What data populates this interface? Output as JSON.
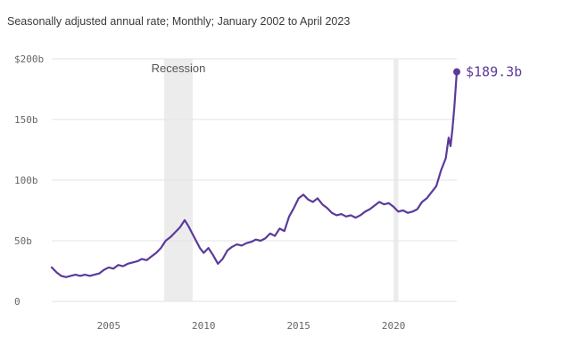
{
  "subtitle": "Seasonally adjusted annual rate; Monthly; January 2002 to April 2023",
  "chart_data": {
    "type": "line",
    "title": "",
    "xlabel": "",
    "ylabel": "",
    "xlim": [
      2002.0,
      2023.33
    ],
    "ylim": [
      0,
      200
    ],
    "grid": true,
    "y_ticks": [
      {
        "value": 0,
        "label": "0"
      },
      {
        "value": 50,
        "label": "50b"
      },
      {
        "value": 100,
        "label": "100b"
      },
      {
        "value": 150,
        "label": "150b"
      },
      {
        "value": 200,
        "label": "$200b"
      }
    ],
    "x_ticks": [
      {
        "value": 2005,
        "label": "2005"
      },
      {
        "value": 2010,
        "label": "2010"
      },
      {
        "value": 2015,
        "label": "2015"
      },
      {
        "value": 2020,
        "label": "2020"
      }
    ],
    "shaded_regions": [
      {
        "label": "Recession",
        "start": 2007.92,
        "end": 2009.42
      },
      {
        "label": "",
        "start": 2020.0,
        "end": 2020.25
      }
    ],
    "end_label": "$189.3b",
    "line_color": "#5b3a9b",
    "shade_color": "#ececec",
    "series": [
      {
        "x": [
          2002.0,
          2002.25,
          2002.5,
          2002.75,
          2003.0,
          2003.25,
          2003.5,
          2003.75,
          2004.0,
          2004.25,
          2004.5,
          2004.75,
          2005.0,
          2005.25,
          2005.5,
          2005.75,
          2006.0,
          2006.25,
          2006.5,
          2006.75,
          2007.0,
          2007.25,
          2007.5,
          2007.75,
          2008.0,
          2008.25,
          2008.5,
          2008.75,
          2009.0,
          2009.2,
          2009.4,
          2009.6,
          2009.8,
          2010.0,
          2010.25,
          2010.5,
          2010.75,
          2011.0,
          2011.25,
          2011.5,
          2011.75,
          2012.0,
          2012.25,
          2012.5,
          2012.75,
          2013.0,
          2013.25,
          2013.5,
          2013.75,
          2014.0,
          2014.25,
          2014.5,
          2014.75,
          2015.0,
          2015.25,
          2015.5,
          2015.75,
          2016.0,
          2016.25,
          2016.5,
          2016.75,
          2017.0,
          2017.25,
          2017.5,
          2017.75,
          2018.0,
          2018.25,
          2018.5,
          2018.75,
          2019.0,
          2019.25,
          2019.5,
          2019.75,
          2020.0,
          2020.25,
          2020.5,
          2020.75,
          2021.0,
          2021.25,
          2021.5,
          2021.75,
          2022.0,
          2022.25,
          2022.5,
          2022.75,
          2022.9,
          2023.0,
          2023.1,
          2023.2,
          2023.33
        ],
        "y": [
          28,
          24,
          21,
          20,
          21,
          22,
          21,
          22,
          21,
          22,
          23,
          26,
          28,
          27,
          30,
          29,
          31,
          32,
          33,
          35,
          34,
          37,
          40,
          44,
          50,
          53,
          57,
          61,
          67,
          62,
          56,
          50,
          44,
          40,
          44,
          38,
          31,
          35,
          42,
          45,
          47,
          46,
          48,
          49,
          51,
          50,
          52,
          56,
          54,
          60,
          58,
          70,
          77,
          85,
          88,
          84,
          82,
          85,
          80,
          77,
          73,
          71,
          72,
          70,
          71,
          69,
          71,
          74,
          76,
          79,
          82,
          80,
          81,
          78,
          74,
          75,
          73,
          74,
          76,
          82,
          85,
          90,
          95,
          108,
          118,
          135,
          128,
          142,
          160,
          189.3
        ]
      }
    ]
  }
}
